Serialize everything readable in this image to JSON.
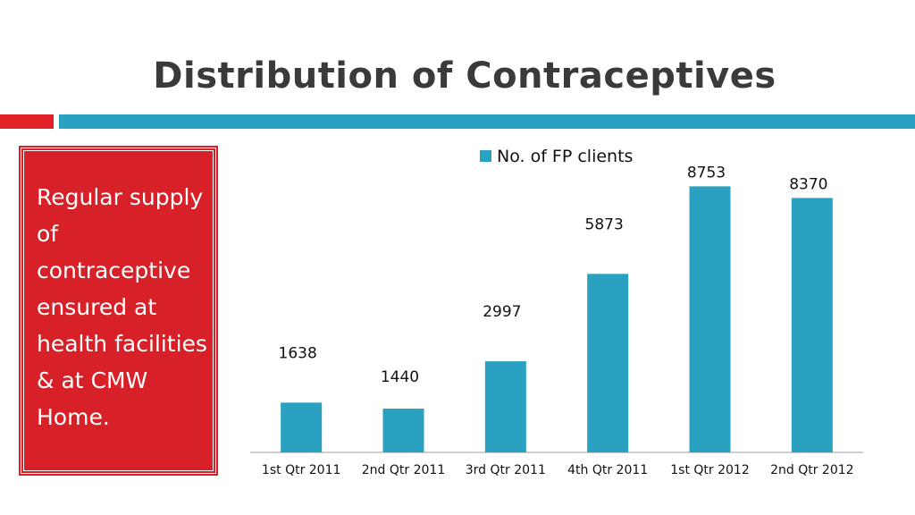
{
  "slide": {
    "title": "Distribution of Contraceptives",
    "side_text": "Regular supply of contraceptive ensured at health facilities & at CMW Home.",
    "colors": {
      "accent_red": "#d72027",
      "accent_blue": "#2aa1c0",
      "title": "#3a3a3a"
    }
  },
  "chart_data": {
    "type": "bar",
    "categories": [
      "1st Qtr 2011",
      "2nd Qtr 2011",
      "3rd Qtr 2011",
      "4th Qtr 2011",
      "1st Qtr 2012",
      "2nd Qtr 2012"
    ],
    "series": [
      {
        "name": "No. of FP clients",
        "values": [
          1638,
          1440,
          2997,
          5873,
          8753,
          8370
        ],
        "color": "#2aa1c0"
      }
    ],
    "data_labels": [
      "1638",
      "1440",
      "2997",
      "5873",
      "8753",
      "8370"
    ],
    "title": "",
    "xlabel": "",
    "ylabel": "",
    "ylim": [
      0,
      9000
    ],
    "grid": false,
    "legend": "top-center"
  }
}
